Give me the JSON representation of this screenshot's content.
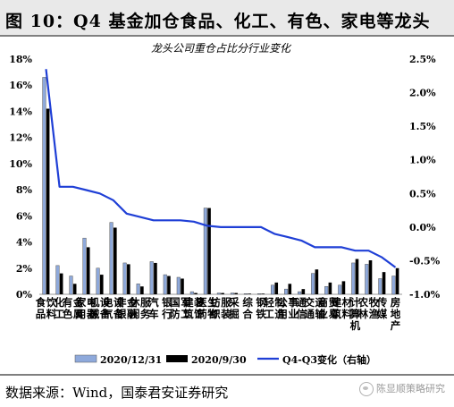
{
  "figure": {
    "title": "图 10：Q4 基金加仓食品、化工、有色、家电等龙头",
    "source": "数据来源：Wind，国泰君安证券研究",
    "watermark": "陈显顺策略研究"
  },
  "chart_data": {
    "type": "bar+line",
    "title": "龙头公司重仓占比分行业变化",
    "categories": [
      "食品饮料",
      "化工",
      "有色金属",
      "家用电器",
      "机械设备",
      "电气设备",
      "非银金融",
      "休闲服务",
      "汽车",
      "银行",
      "国防军工",
      "建筑装饰",
      "医药生物",
      "纺织服装",
      "采掘",
      "综合",
      "钢铁",
      "轻工制造",
      "公用事业",
      "通信",
      "交通运输",
      "商业贸易",
      "建筑材料",
      "计算机",
      "农林牧渔",
      "传媒",
      "房地产"
    ],
    "series": [
      {
        "name": "2020/12/31",
        "axis": "left",
        "color": "#8ea9db",
        "values": [
          16.6,
          2.2,
          1.4,
          4.3,
          2.0,
          5.5,
          2.4,
          0.8,
          2.5,
          1.5,
          1.3,
          0.2,
          6.6,
          0.1,
          0.1,
          0.05,
          0.05,
          0.7,
          0.4,
          0.2,
          1.6,
          0.6,
          0.7,
          2.4,
          2.3,
          1.2,
          1.4
        ]
      },
      {
        "name": "2020/9/30",
        "axis": "left",
        "color": "#000000",
        "values": [
          14.2,
          1.6,
          0.8,
          3.6,
          1.5,
          5.1,
          2.3,
          0.6,
          2.4,
          1.4,
          1.2,
          0.1,
          6.6,
          0.1,
          0.1,
          0.05,
          0.05,
          0.9,
          0.8,
          0.4,
          1.9,
          0.9,
          1.0,
          2.7,
          2.6,
          1.7,
          2.0
        ]
      },
      {
        "name": "Q4-Q3变化（右轴）",
        "axis": "right",
        "type": "line",
        "color": "#1f3fd6",
        "values": [
          2.35,
          0.6,
          0.6,
          0.55,
          0.5,
          0.4,
          0.2,
          0.15,
          0.1,
          0.1,
          0.1,
          0.08,
          0.02,
          0.0,
          0.0,
          0.0,
          0.0,
          -0.1,
          -0.15,
          -0.2,
          -0.3,
          -0.3,
          -0.3,
          -0.35,
          -0.35,
          -0.45,
          -0.6
        ]
      }
    ],
    "y_left": {
      "min": 0,
      "max": 18,
      "ticks": [
        "0%",
        "2%",
        "4%",
        "6%",
        "8%",
        "10%",
        "12%",
        "14%",
        "16%",
        "18%"
      ]
    },
    "y_right": {
      "min": -1.0,
      "max": 2.5,
      "ticks": [
        "-1.0%",
        "-0.5%",
        "0.0%",
        "0.5%",
        "1.0%",
        "1.5%",
        "2.0%",
        "2.5%"
      ]
    },
    "legend": [
      "2020/12/31",
      "2020/9/30",
      "Q4-Q3变化（右轴）"
    ],
    "legend_position": "bottom",
    "grid": false
  }
}
